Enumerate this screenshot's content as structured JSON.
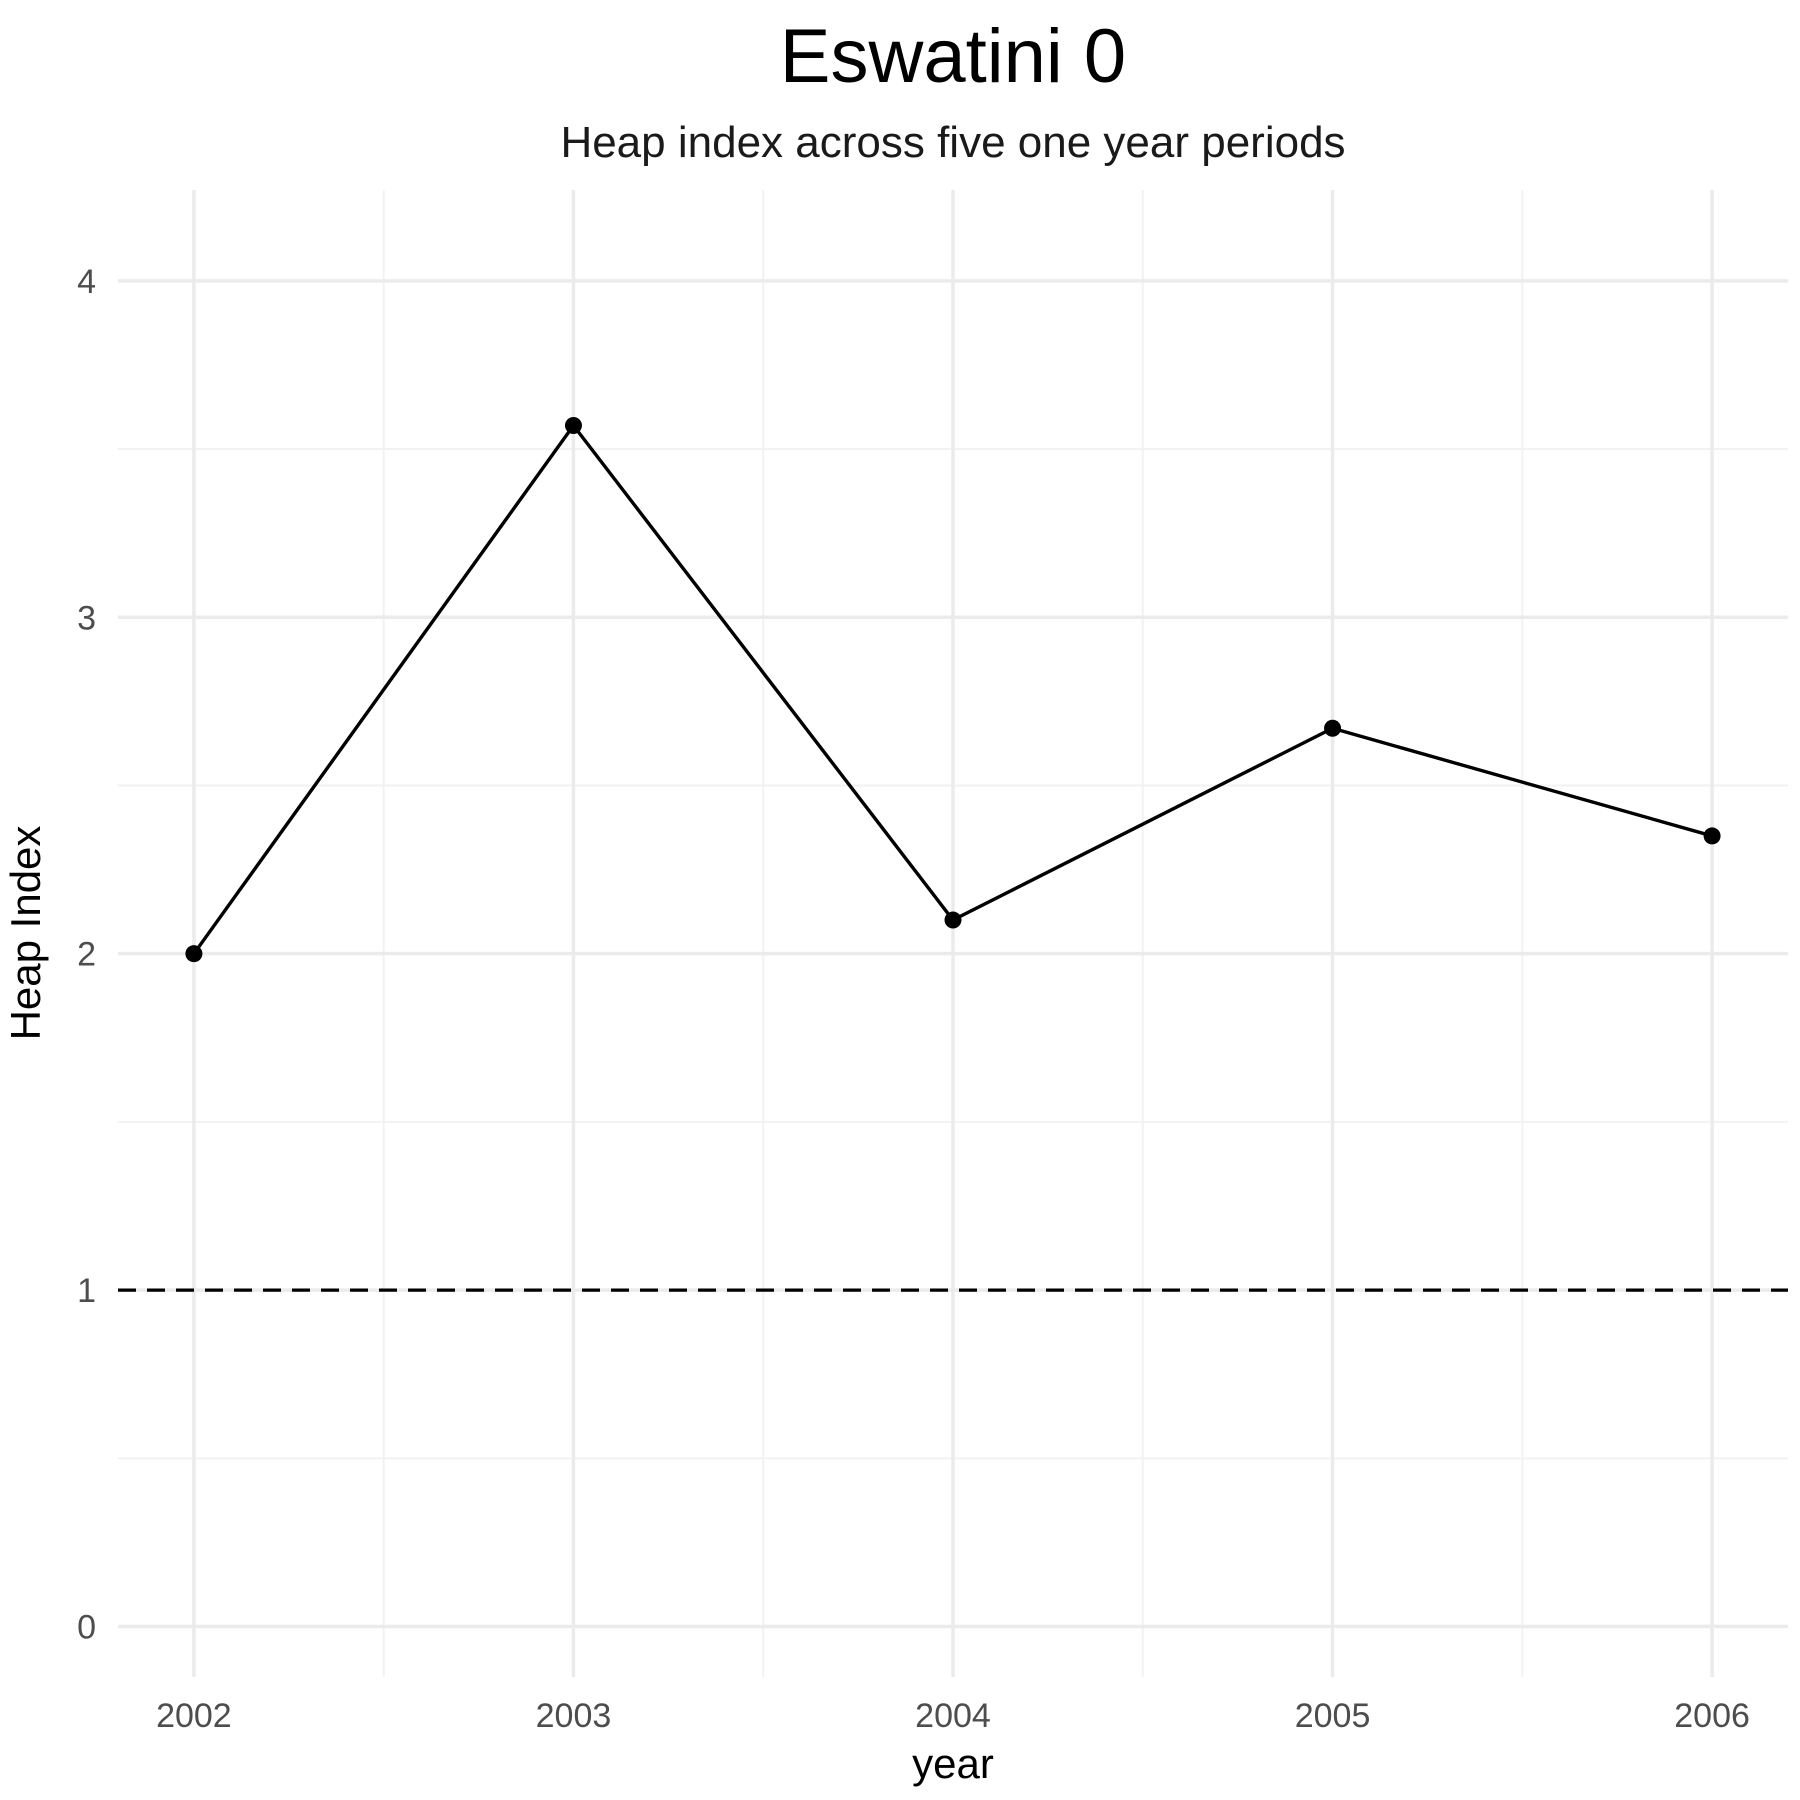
{
  "chart_data": {
    "type": "line",
    "title": "Eswatini 0",
    "subtitle": "Heap index across five one year periods",
    "xlabel": "year",
    "ylabel": "Heap Index",
    "x": [
      2002,
      2003,
      2004,
      2005,
      2006
    ],
    "x_tick_labels": [
      "2002",
      "2003",
      "2004",
      "2005",
      "2006"
    ],
    "y_ticks": [
      0,
      1,
      2,
      3,
      4
    ],
    "y_tick_labels": [
      "0",
      "1",
      "2",
      "3",
      "4"
    ],
    "xlim": [
      2001.8,
      2006.2
    ],
    "ylim": [
      -0.15,
      4.27
    ],
    "grid": true,
    "series": [
      {
        "values": [
          2.0,
          3.57,
          2.1,
          2.67,
          2.35
        ],
        "color": "#000000"
      }
    ],
    "reference_line": {
      "y": 1,
      "style": "dashed",
      "color": "#000000"
    }
  }
}
